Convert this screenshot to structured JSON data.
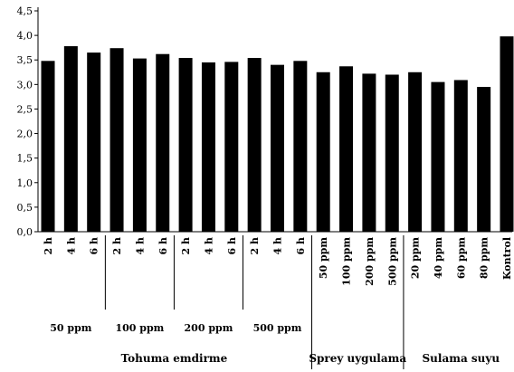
{
  "chart_data": {
    "type": "bar",
    "ylim": [
      0,
      4.5
    ],
    "yticks": [
      "0,0",
      "0,5",
      "1,0",
      "1,5",
      "2,0",
      "2,5",
      "3,0",
      "3,5",
      "4,0",
      "4,5"
    ],
    "bar_color": "#000000",
    "grid": false,
    "categories": [
      "2 h",
      "4 h",
      "6 h",
      "2 h",
      "4 h",
      "6 h",
      "2 h",
      "4 h",
      "6 h",
      "2 h",
      "4 h",
      "6 h",
      "50 ppm",
      "100 ppm",
      "200 ppm",
      "500 ppm",
      "20 ppm",
      "40 ppm",
      "60 ppm",
      "80 ppm",
      "Kontrol"
    ],
    "values": [
      3.48,
      3.78,
      3.65,
      3.74,
      3.53,
      3.62,
      3.54,
      3.45,
      3.46,
      3.54,
      3.4,
      3.48,
      3.25,
      3.37,
      3.22,
      3.2,
      3.25,
      3.05,
      3.09,
      2.95,
      3.98
    ],
    "subgroups": [
      {
        "label": "50 ppm",
        "start": 0,
        "end": 2
      },
      {
        "label": "100 ppm",
        "start": 3,
        "end": 5
      },
      {
        "label": "200 ppm",
        "start": 6,
        "end": 8
      },
      {
        "label": "500 ppm",
        "start": 9,
        "end": 11
      }
    ],
    "groups": [
      {
        "label": "Tohuma emdirme",
        "start": 0,
        "end": 11
      },
      {
        "label": "Sprey uygulama",
        "start": 12,
        "end": 15
      },
      {
        "label": "Sulama suyu",
        "start": 16,
        "end": 20
      }
    ]
  }
}
